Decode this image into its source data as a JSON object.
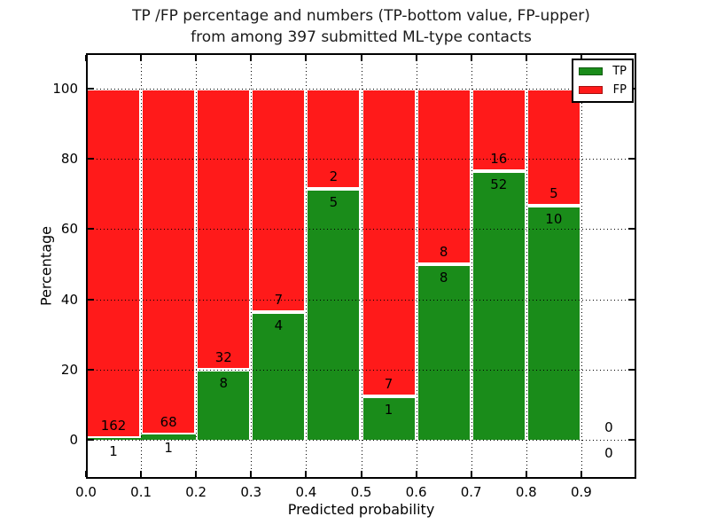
{
  "title": {
    "line1": "TP /FP percentage and numbers (TP-bottom value, FP-upper)",
    "line2": "from among 397 submitted ML-type contacts"
  },
  "axes": {
    "xlabel": "Predicted probability",
    "ylabel": "Percentage",
    "x_tick_labels": [
      "0.0",
      "0.1",
      "0.2",
      "0.3",
      "0.4",
      "0.5",
      "0.6",
      "0.7",
      "0.8",
      "0.9"
    ],
    "y_tick_labels": [
      "0",
      "20",
      "40",
      "60",
      "80",
      "100"
    ]
  },
  "legend": {
    "position": "upper right",
    "items": [
      {
        "label": "TP",
        "color": "#1a8c1a",
        "swatch_name": "legend-swatch-tp"
      },
      {
        "label": "FP",
        "color": "#ff1a1a",
        "swatch_name": "legend-swatch-fp"
      }
    ]
  },
  "colors": {
    "tp": "#1a8c1a",
    "fp": "#ff1a1a",
    "bar_edge": "#ffffff",
    "grid": "#000000",
    "frame": "#000000",
    "background": "#ffffff"
  },
  "chart_data": {
    "type": "bar",
    "stacked": true,
    "normalized": "each bin scaled to 100%",
    "title": "TP /FP percentage and numbers (TP-bottom value, FP-upper) from among 397 submitted ML-type contacts",
    "xlabel": "Predicted probability",
    "ylabel": "Percentage",
    "grid": "dotted",
    "legend_position": "upper right",
    "total_contacts": 397,
    "bins": [
      [
        0.0,
        0.1
      ],
      [
        0.1,
        0.2
      ],
      [
        0.2,
        0.3
      ],
      [
        0.3,
        0.4
      ],
      [
        0.4,
        0.5
      ],
      [
        0.5,
        0.6
      ],
      [
        0.6,
        0.7
      ],
      [
        0.7,
        0.8
      ],
      [
        0.8,
        0.9
      ],
      [
        0.9,
        1.0
      ]
    ],
    "x_ticks": [
      0.0,
      0.1,
      0.2,
      0.3,
      0.4,
      0.5,
      0.6,
      0.7,
      0.8,
      0.9
    ],
    "y_ticks": [
      0,
      20,
      40,
      60,
      80,
      100
    ],
    "ylim_display": [
      -12,
      110
    ],
    "series": [
      {
        "name": "TP",
        "color": "#1a8c1a",
        "counts": [
          1,
          1,
          8,
          4,
          5,
          1,
          8,
          52,
          10,
          0
        ]
      },
      {
        "name": "FP",
        "color": "#ff1a1a",
        "counts": [
          162,
          68,
          32,
          7,
          2,
          7,
          8,
          16,
          5,
          0
        ]
      }
    ],
    "tp_percent_of_bin": [
      0.6,
      1.4,
      20.0,
      36.4,
      71.4,
      12.5,
      50.0,
      76.5,
      66.7,
      null
    ]
  }
}
